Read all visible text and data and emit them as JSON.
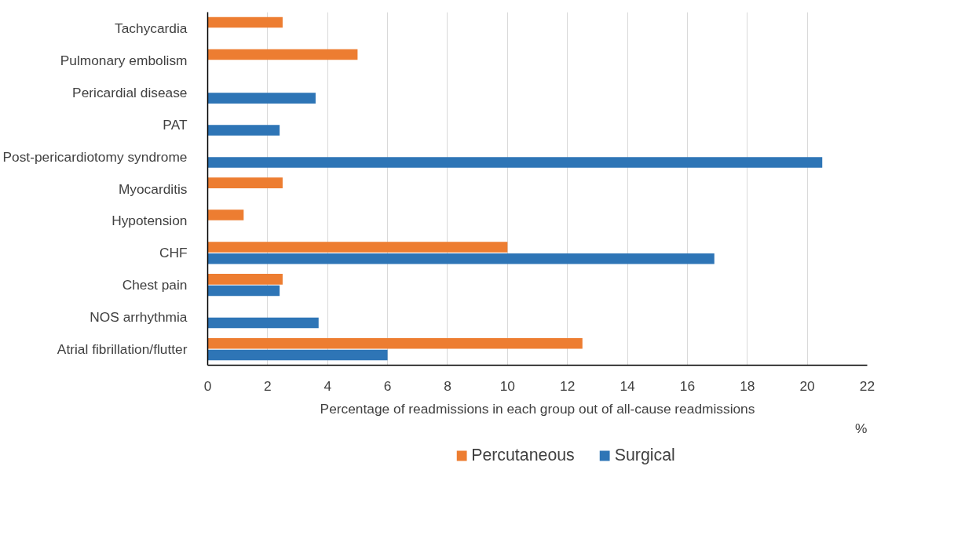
{
  "chart_data": {
    "type": "bar",
    "orientation": "horizontal",
    "xlabel": "Percentage of readmissions in each group out of all-cause readmissions",
    "categories": [
      "Tachycardia",
      "Pulmonary embolism",
      "Pericardial disease",
      "PAT",
      "Post-pericardiotomy syndrome",
      "Myocarditis",
      "Hypotension",
      "CHF",
      "Chest pain",
      "NOS arrhythmia",
      "Atrial fibrillation/flutter"
    ],
    "series": [
      {
        "name": "Percutaneous",
        "color": "#ed7d31",
        "values": [
          2.5,
          5,
          null,
          null,
          null,
          2.5,
          1.2,
          10,
          2.5,
          null,
          12.5
        ]
      },
      {
        "name": "Surgical",
        "color": "#2e75b6",
        "values": [
          null,
          null,
          3.6,
          2.4,
          20.5,
          null,
          null,
          16.9,
          2.4,
          3.7,
          6
        ]
      }
    ],
    "xlim": [
      0,
      22
    ],
    "xticks": [
      0,
      2,
      4,
      6,
      8,
      10,
      12,
      14,
      16,
      18,
      20,
      22
    ],
    "annotations": [
      "%"
    ],
    "grid": "x",
    "legend": "bottom"
  }
}
